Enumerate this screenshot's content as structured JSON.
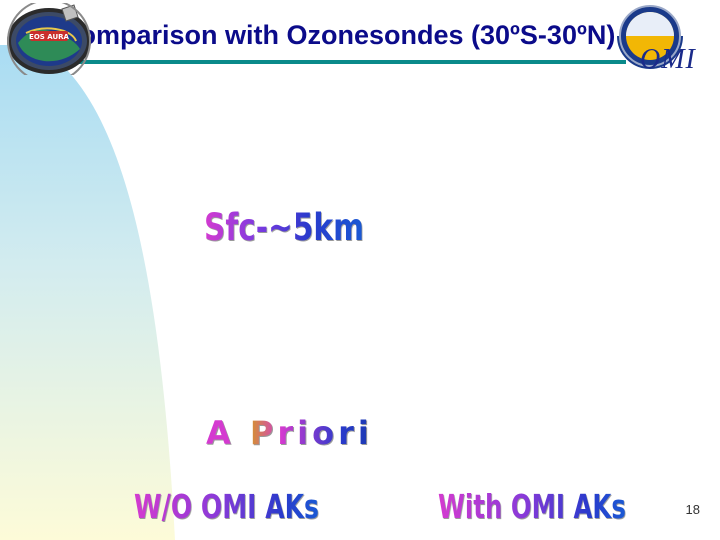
{
  "slide": {
    "title": "Comparison with Ozonesondes (30ºS-30ºN)",
    "page_number": "18"
  },
  "logos": {
    "eos_aura_text": "EOS AURA",
    "omi_text": "OMI"
  },
  "wordart": {
    "surface_layer": "Sfc-~5km",
    "a_priori": "A Priori",
    "without_aks": "W/O OMI AKs",
    "with_aks": "With OMI AKs"
  },
  "colors": {
    "title": "#0b0b8a",
    "title_rule": "#0a8a8a",
    "curve_top": "#a9dcf3",
    "curve_bottom": "#fdfbd8"
  }
}
